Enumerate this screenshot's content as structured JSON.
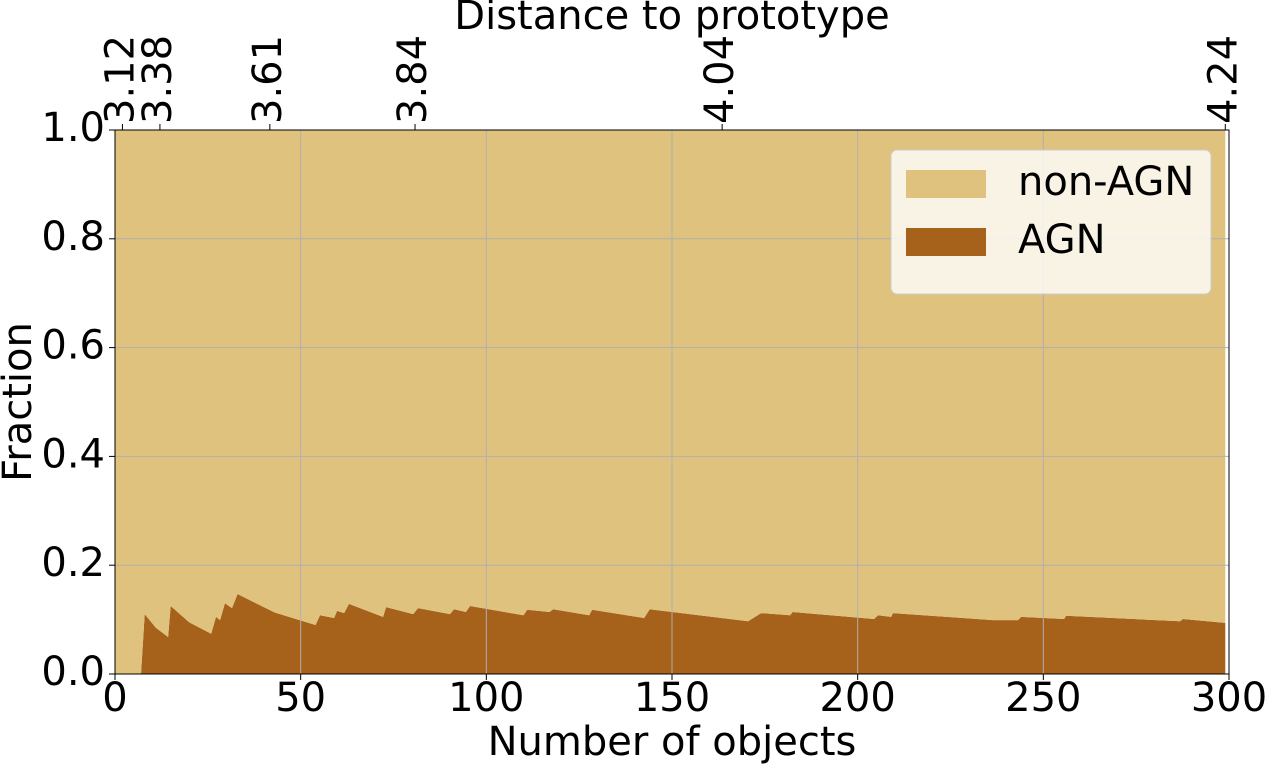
{
  "chart_data": {
    "type": "stackplot",
    "title": "Distance to prototype",
    "xlabel": "Number of objects",
    "ylabel": "Fraction",
    "x": [
      0,
      7,
      8,
      11,
      14.3,
      15,
      20,
      25.9,
      27.2,
      28.3,
      29.6,
      31.5,
      33,
      43,
      54,
      55.2,
      59,
      59.8,
      61.7,
      63,
      72.2,
      73,
      80.3,
      81.6,
      90.2,
      91.3,
      94.5,
      95.6,
      110,
      111,
      117,
      118,
      127.7,
      128.5,
      142.5,
      144,
      170.5,
      174,
      181.8,
      182.5,
      204.4,
      205.5,
      209,
      209.5,
      236.5,
      243.2,
      244,
      255.6,
      256.1,
      286.8,
      287.6,
      299
    ],
    "series": [
      {
        "name": "AGN",
        "color": "#a6611a",
        "values": [
          0,
          0,
          0.11,
          0.085,
          0.068,
          0.125,
          0.095,
          0.074,
          0.105,
          0.099,
          0.13,
          0.121,
          0.147,
          0.113,
          0.09,
          0.108,
          0.103,
          0.116,
          0.112,
          0.129,
          0.105,
          0.123,
          0.11,
          0.121,
          0.11,
          0.119,
          0.114,
          0.125,
          0.108,
          0.118,
          0.114,
          0.119,
          0.108,
          0.118,
          0.103,
          0.119,
          0.097,
          0.112,
          0.108,
          0.114,
          0.101,
          0.108,
          0.105,
          0.112,
          0.099,
          0.099,
          0.105,
          0.101,
          0.107,
          0.097,
          0.101,
          0.094
        ]
      },
      {
        "name": "non-AGN",
        "color": "#dfc27d",
        "values": [
          1,
          1,
          0.89,
          0.915,
          0.932,
          0.875,
          0.905,
          0.926,
          0.895,
          0.901,
          0.87,
          0.879,
          0.853,
          0.887,
          0.91,
          0.892,
          0.897,
          0.884,
          0.888,
          0.871,
          0.895,
          0.877,
          0.89,
          0.879,
          0.89,
          0.881,
          0.886,
          0.875,
          0.892,
          0.882,
          0.886,
          0.881,
          0.892,
          0.882,
          0.897,
          0.881,
          0.903,
          0.888,
          0.892,
          0.886,
          0.899,
          0.892,
          0.895,
          0.888,
          0.901,
          0.901,
          0.895,
          0.899,
          0.893,
          0.903,
          0.899,
          0.906
        ]
      }
    ],
    "xlim": [
      0,
      300
    ],
    "xticks": [
      0,
      50,
      100,
      150,
      200,
      250,
      300
    ],
    "ylim": [
      0,
      1
    ],
    "yticks": [
      {
        "value": 0,
        "label": "0.0"
      },
      0.2,
      0.4,
      0.6,
      0.8,
      {
        "value": 1,
        "label": "1.0"
      }
    ],
    "x2ticks": [
      {
        "value": 2,
        "label": "3.12"
      },
      {
        "value": 12.1,
        "label": "3.38"
      },
      {
        "value": 41.7,
        "label": "3.61"
      },
      {
        "value": 80.8,
        "label": "3.84"
      },
      {
        "value": 163.5,
        "label": "4.04"
      },
      {
        "value": 299,
        "label": "4.24"
      }
    ],
    "grid": true,
    "legend": "upper right"
  }
}
